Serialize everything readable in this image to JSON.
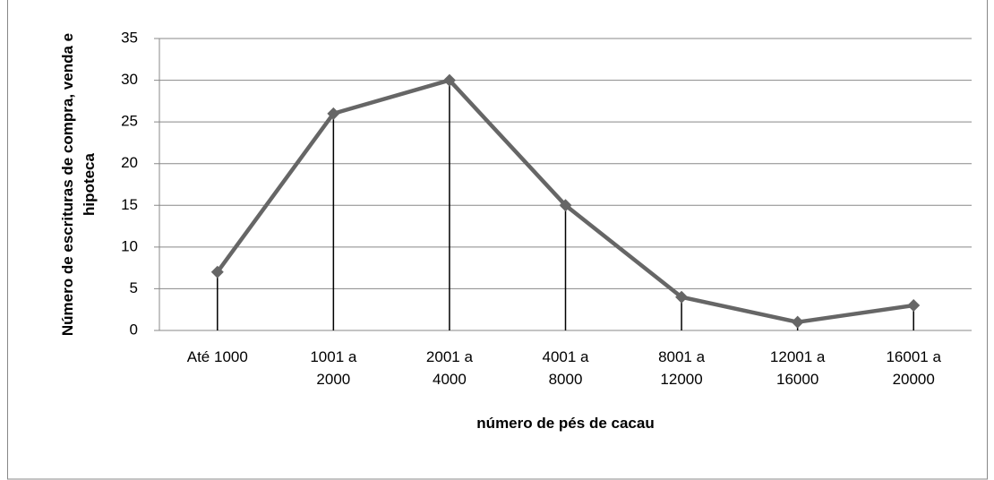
{
  "chart_data": {
    "type": "line",
    "xlabel": "número de pés de cacau",
    "ylabel": "Número de escrituras de compra, venda e hipoteca",
    "categories": [
      "Até 1000",
      "1001 a 2000",
      "2001 a 4000",
      "4001 a 8000",
      "8001 a 12000",
      "12001 a 16000",
      "16001 a 20000"
    ],
    "values": [
      7,
      26,
      30,
      15,
      4,
      1,
      3
    ],
    "color": "#666666",
    "drop_lines": true,
    "ylim": [
      0,
      35
    ],
    "yticks": [
      0,
      5,
      10,
      15,
      20,
      25,
      30,
      35
    ],
    "grid": true
  }
}
